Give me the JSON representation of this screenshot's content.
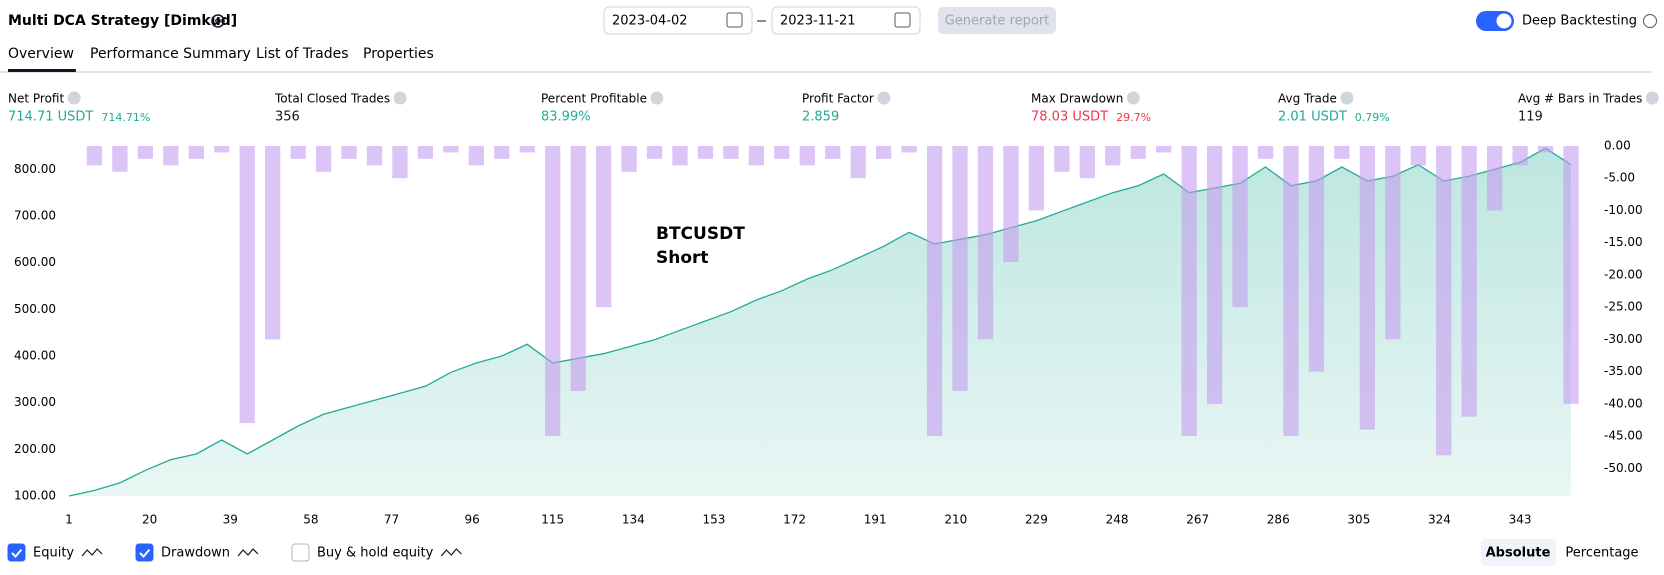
{
  "header": {
    "title": "Multi DCA Strategy [Dimkud]",
    "date_from": "2023-04-02",
    "date_to": "2023-11-21",
    "generate_button": "Generate report",
    "deep_backtesting": "Deep Backtesting"
  },
  "tabs": [
    "Overview",
    "Performance Summary",
    "List of Trades",
    "Properties"
  ],
  "metrics": [
    {
      "label": "Net Profit",
      "value": "714.71 USDT",
      "percent": "714.71%",
      "color": "#22ab94"
    },
    {
      "label": "Total Closed Trades",
      "value": "356",
      "color": "#131722"
    },
    {
      "label": "Percent Profitable",
      "value": "83.99%",
      "color": "#22ab94"
    },
    {
      "label": "Profit Factor",
      "value": "2.859",
      "color": "#22ab94"
    },
    {
      "label": "Max Drawdown",
      "value": "78.03 USDT",
      "percent": "29.7%",
      "color": "#f23645"
    },
    {
      "label": "Avg Trade",
      "value": "2.01 USDT",
      "percent": "0.79%",
      "color": "#22ab94"
    },
    {
      "label": "Avg # Bars in Trades",
      "value": "119",
      "color": "#131722"
    }
  ],
  "chart_data": {
    "type": "equity-drawdown",
    "annotation": [
      "BTCUSDT",
      "Short"
    ],
    "x": [
      1,
      7,
      13,
      19,
      25,
      31,
      37,
      43,
      49,
      55,
      61,
      67,
      73,
      79,
      85,
      91,
      97,
      103,
      109,
      115,
      121,
      127,
      133,
      139,
      145,
      151,
      157,
      163,
      169,
      175,
      181,
      187,
      193,
      199,
      205,
      211,
      217,
      223,
      229,
      235,
      241,
      247,
      253,
      259,
      265,
      271,
      277,
      283,
      289,
      295,
      301,
      307,
      313,
      319,
      325,
      331,
      337,
      343,
      349,
      355
    ],
    "series": [
      {
        "name": "Equity",
        "color": "#22ab94",
        "checked": true,
        "values": [
          100,
          112,
          128,
          155,
          178,
          190,
          220,
          190,
          220,
          250,
          275,
          290,
          305,
          320,
          335,
          365,
          385,
          400,
          425,
          385,
          395,
          405,
          420,
          435,
          455,
          475,
          495,
          520,
          540,
          565,
          585,
          610,
          635,
          665,
          640,
          650,
          660,
          675,
          690,
          710,
          730,
          750,
          765,
          790,
          750,
          760,
          770,
          805,
          765,
          775,
          805,
          775,
          785,
          810,
          775,
          785,
          800,
          815,
          845,
          810
        ]
      },
      {
        "name": "Drawdown",
        "color": "#c59cf0",
        "axis": "y2",
        "checked": true,
        "values": [
          0,
          -3,
          -4,
          -2,
          -3,
          -2,
          -1,
          -43,
          -30,
          -2,
          -4,
          -2,
          -3,
          -5,
          -2,
          -1,
          -3,
          -2,
          -1,
          -45,
          -38,
          -25,
          -4,
          -2,
          -3,
          -2,
          -2,
          -3,
          -2,
          -3,
          -2,
          -5,
          -2,
          -1,
          -45,
          -38,
          -30,
          -18,
          -10,
          -4,
          -5,
          -3,
          -2,
          -1,
          -45,
          -40,
          -25,
          -2,
          -45,
          -35,
          -2,
          -44,
          -30,
          -3,
          -48,
          -42,
          -10,
          -3,
          -1,
          -40
        ]
      }
    ],
    "extra_legend": {
      "name": "Buy & hold equity",
      "checked": false
    },
    "xlim": [
      1,
      359
    ],
    "xticks": [
      1,
      20,
      39,
      58,
      77,
      96,
      115,
      134,
      153,
      172,
      191,
      210,
      229,
      248,
      267,
      286,
      305,
      324,
      343
    ],
    "ylim": [
      100,
      850
    ],
    "yticks": [
      {
        "value": 100,
        "label": "100.00"
      },
      {
        "value": 200,
        "label": "200.00"
      },
      {
        "value": 300,
        "label": "300.00"
      },
      {
        "value": 400,
        "label": "400.00"
      },
      {
        "value": 500,
        "label": "500.00"
      },
      {
        "value": 600,
        "label": "600.00"
      },
      {
        "value": 700,
        "label": "700.00"
      },
      {
        "value": 800,
        "label": "800.00"
      }
    ],
    "y2lim": [
      -54.3,
      0
    ],
    "y2ticks": [
      {
        "value": 0,
        "label": "0.00"
      },
      {
        "value": -5,
        "label": "-5.00"
      },
      {
        "value": -10,
        "label": "-10.00"
      },
      {
        "value": -15,
        "label": "-15.00"
      },
      {
        "value": -20,
        "label": "-20.00"
      },
      {
        "value": -25,
        "label": "-25.00"
      },
      {
        "value": -30,
        "label": "-30.00"
      },
      {
        "value": -35,
        "label": "-35.00"
      },
      {
        "value": -40,
        "label": "-40.00"
      },
      {
        "value": -45,
        "label": "-45.00"
      },
      {
        "value": -50,
        "label": "-50.00"
      }
    ],
    "scale_modes": [
      "Absolute",
      "Percentage"
    ]
  }
}
